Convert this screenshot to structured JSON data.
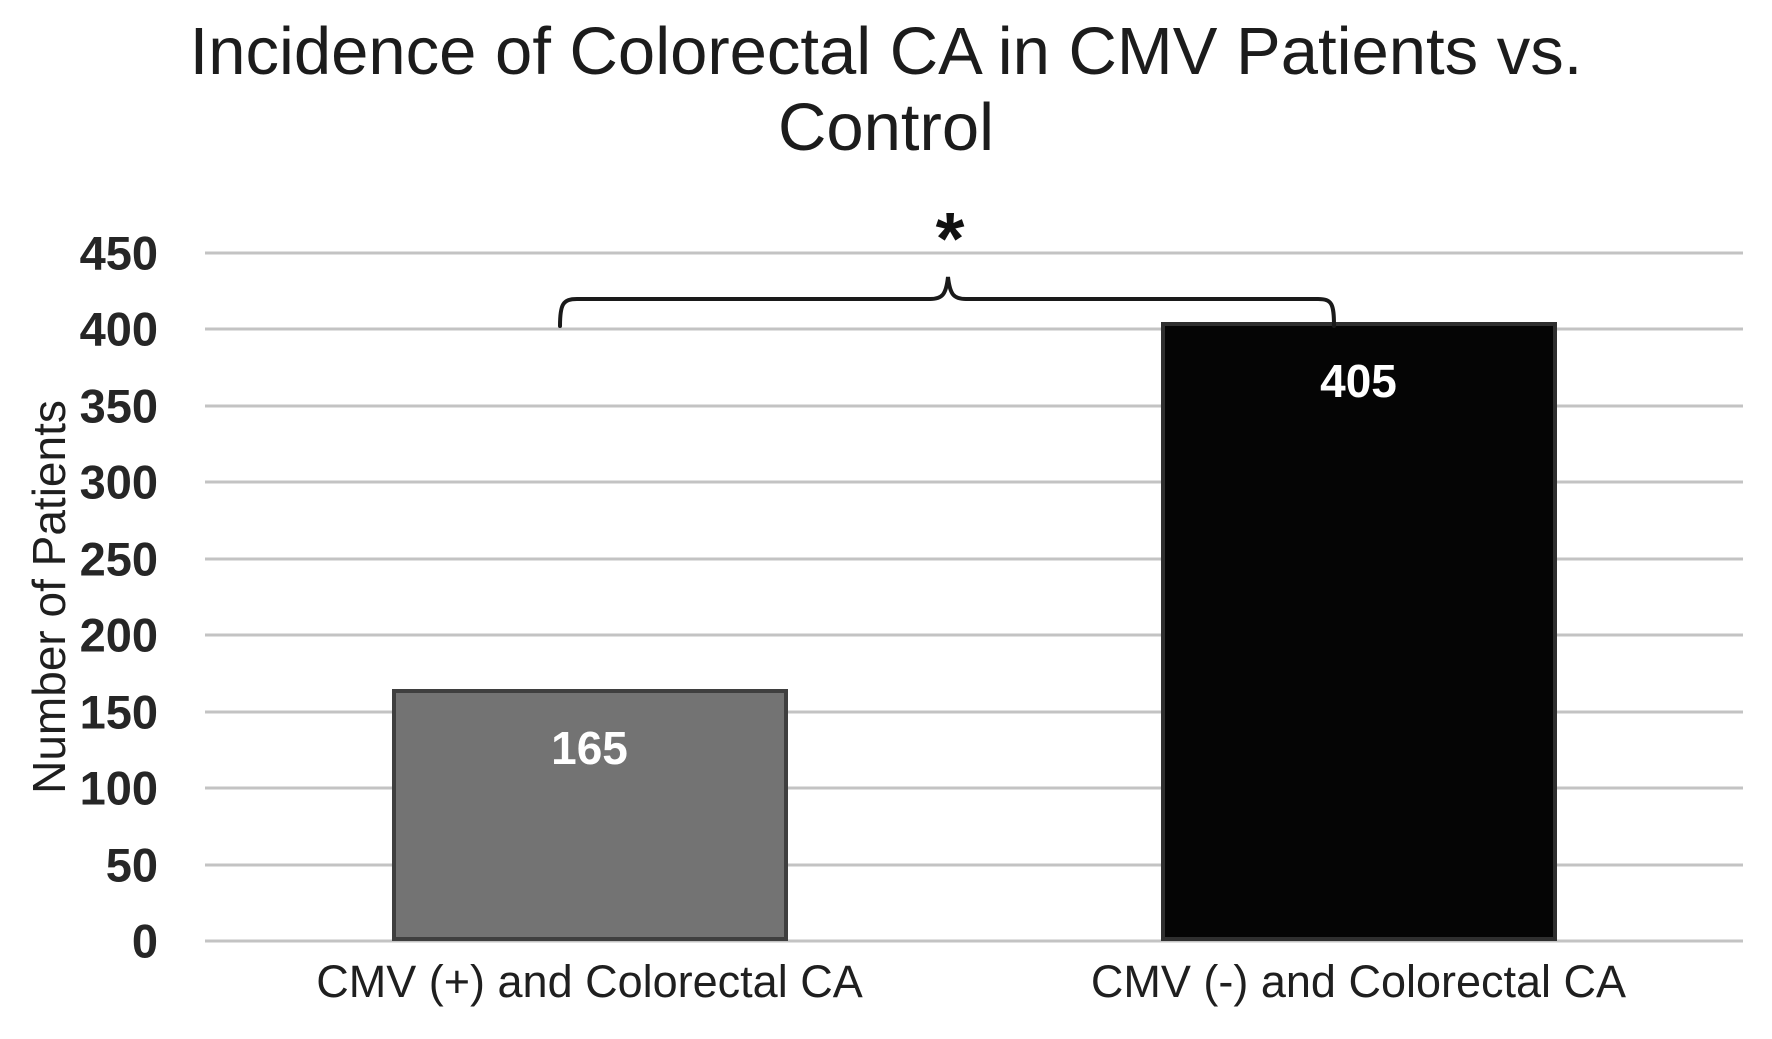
{
  "figure": {
    "title_line1": "Incidence of Colorectal CA in CMV Patients vs.",
    "title_line2": "Control",
    "background_color": "#ffffff"
  },
  "chart_data": {
    "type": "bar",
    "title": "Incidence of Colorectal CA in CMV Patients vs. Control",
    "categories": [
      "CMV (+) and Colorectal CA",
      "CMV (-) and Colorectal CA"
    ],
    "values": [
      165,
      405
    ],
    "value_labels": [
      "165",
      "405"
    ],
    "value_label_color": "#ffffff",
    "bar_fill_colors": [
      "#737373",
      "#050505"
    ],
    "bar_border_colors": [
      "#3f3f3f",
      "#2f2f2f"
    ],
    "xlabel": "",
    "ylabel": "Number of Patients",
    "ylim": [
      0,
      450
    ],
    "ytick_step": 50,
    "yticks": [
      "0",
      "50",
      "100",
      "150",
      "200",
      "250",
      "300",
      "350",
      "400",
      "450"
    ],
    "grid": "horizontal gridlines on",
    "gridline_color": "#c3c3c3",
    "legend_position": "none",
    "annotation": {
      "symbol": "*",
      "meaning": "significance bracket between the two bars",
      "bracket_color": "#1a1a1a"
    }
  }
}
